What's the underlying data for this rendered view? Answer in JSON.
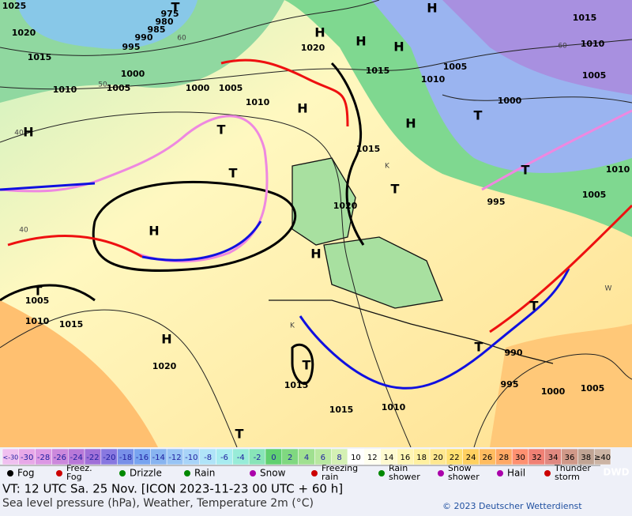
{
  "map": {
    "labels": [
      "1025",
      "T",
      "975",
      "980",
      "985",
      "1020",
      "990",
      "995",
      "1015",
      "H",
      "1020",
      "H",
      "H",
      "H",
      "1015",
      "1010",
      "1000",
      "1005",
      "1010",
      "1000",
      "1005",
      "1010",
      "1015",
      "1010",
      "1005",
      "1005",
      "1000",
      "H",
      "H",
      "T",
      "H",
      "T",
      "1015",
      "T",
      "T",
      "T",
      "1005",
      "995",
      "1020",
      "H",
      "H",
      "T",
      "1005",
      "1010",
      "1015",
      "H",
      "T",
      "990",
      "T",
      "1020",
      "T",
      "1015",
      "995",
      "1000",
      "1005",
      "1015",
      "1010",
      "T",
      "1010"
    ],
    "isotherm_labels": [
      "60",
      "50",
      "40",
      "40",
      "60",
      "K",
      "K",
      "W"
    ]
  },
  "legend": {
    "scale": [
      {
        "label": "<-30",
        "color": "#f0c0f0"
      },
      {
        "label": "-30",
        "color": "#e8a8e8"
      },
      {
        "label": "-28",
        "color": "#dc98e4"
      },
      {
        "label": "-26",
        "color": "#cc88dc"
      },
      {
        "label": "-24",
        "color": "#b878d8"
      },
      {
        "label": "-22",
        "color": "#a070d8"
      },
      {
        "label": "-20",
        "color": "#8878e0"
      },
      {
        "label": "-18",
        "color": "#7890e8"
      },
      {
        "label": "-16",
        "color": "#78a4f0"
      },
      {
        "label": "-14",
        "color": "#88b4f0"
      },
      {
        "label": "-12",
        "color": "#98c4f4"
      },
      {
        "label": "-10",
        "color": "#a8d4f8"
      },
      {
        "label": "-8",
        "color": "#b0e4f8"
      },
      {
        "label": "-6",
        "color": "#a8ecf0"
      },
      {
        "label": "-4",
        "color": "#98ecd8"
      },
      {
        "label": "-2",
        "color": "#88e4b8"
      },
      {
        "label": "0",
        "color": "#60d070"
      },
      {
        "label": "2",
        "color": "#80d880"
      },
      {
        "label": "4",
        "color": "#a0e090"
      },
      {
        "label": "6",
        "color": "#b8e8a0"
      },
      {
        "label": "8",
        "color": "#d4f0b4"
      },
      {
        "label": "10",
        "color": "#ffffff"
      },
      {
        "label": "12",
        "color": "#fffff0"
      },
      {
        "label": "14",
        "color": "#fffad0"
      },
      {
        "label": "16",
        "color": "#fff5b4"
      },
      {
        "label": "18",
        "color": "#fff0a0"
      },
      {
        "label": "20",
        "color": "#ffe890"
      },
      {
        "label": "22",
        "color": "#ffe070"
      },
      {
        "label": "24",
        "color": "#ffd060"
      },
      {
        "label": "26",
        "color": "#ffbc60"
      },
      {
        "label": "28",
        "color": "#ffa864"
      },
      {
        "label": "30",
        "color": "#ff9070"
      },
      {
        "label": "32",
        "color": "#f08074"
      },
      {
        "label": "34",
        "color": "#e08880"
      },
      {
        "label": "36",
        "color": "#d09888"
      },
      {
        "label": "38",
        "color": "#c0a494"
      },
      {
        "label": "≥40",
        "color": "#ccb4a4"
      }
    ],
    "symbols": [
      [
        "Fog"
      ],
      [
        "Freez.",
        "Fog"
      ],
      [
        "Drizzle"
      ],
      [
        "Rain"
      ],
      [
        "Snow"
      ],
      [
        "Freezing",
        "rain"
      ],
      [
        "Rain",
        "shower"
      ],
      [
        "Snow",
        "shower"
      ],
      [
        "Hail"
      ],
      [
        "Thunder",
        "storm"
      ]
    ]
  },
  "footer": {
    "valid_time": "VT: 12 UTC Sa.  25 Nov. [ICON 2023-11-23  00 UTC + 60 h]",
    "description": "Sea level pressure (hPa), Weather, Temperature 2m (°C)",
    "copyright": "© 2023 Deutscher Wetterdienst",
    "logo": "DWD"
  }
}
